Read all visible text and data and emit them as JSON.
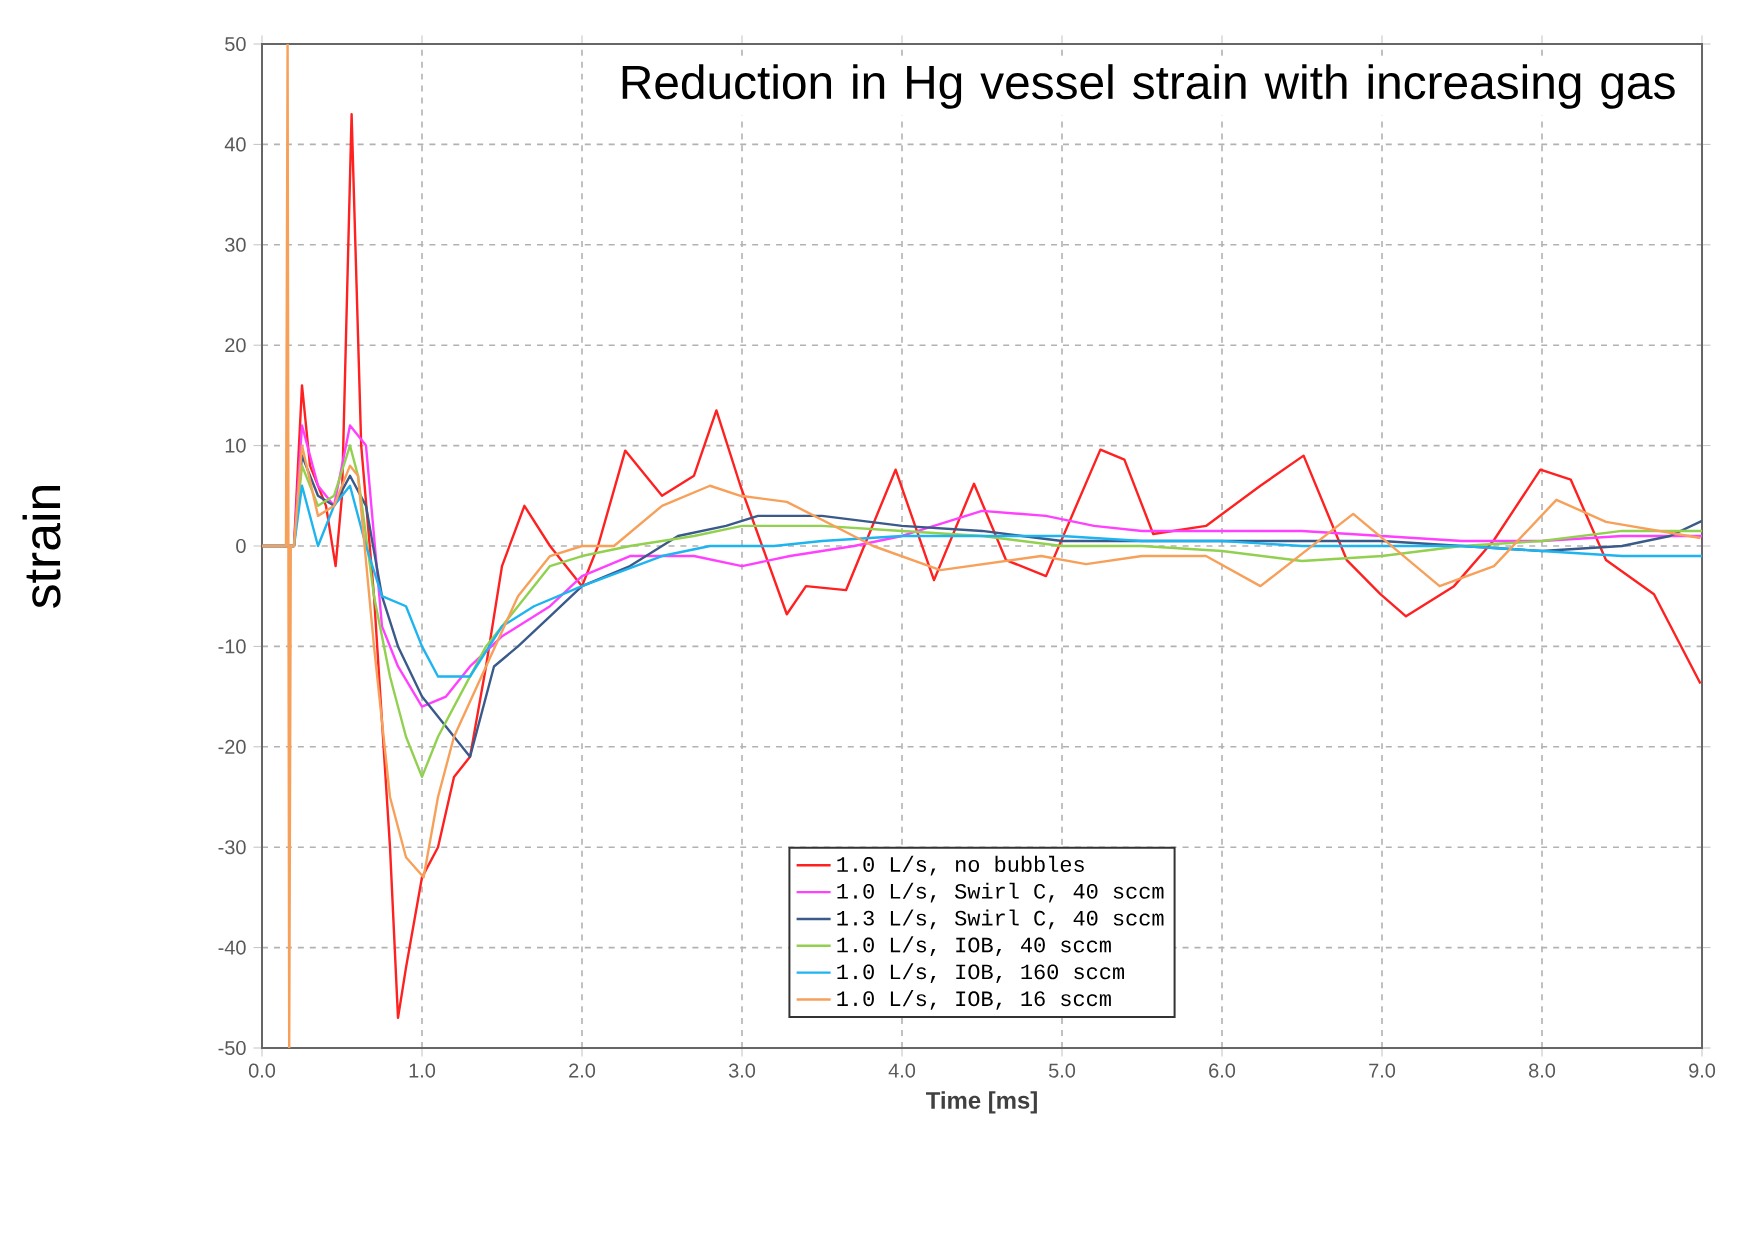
{
  "chart_data": {
    "type": "line",
    "title": "Reduction in Hg vessel strain with increasing gas",
    "xlabel": "Time [ms]",
    "ylabel": "strain",
    "xlim": [
      0,
      9
    ],
    "ylim": [
      -50,
      50
    ],
    "xticks": [
      {
        "value": 0,
        "label": "0.0"
      },
      {
        "value": 1,
        "label": "1.0"
      },
      {
        "value": 2,
        "label": "2.0"
      },
      {
        "value": 3,
        "label": "3.0"
      },
      {
        "value": 4,
        "label": "4.0"
      },
      {
        "value": 5,
        "label": "5.0"
      },
      {
        "value": 6,
        "label": "6.0"
      },
      {
        "value": 7,
        "label": "7.0"
      },
      {
        "value": 8,
        "label": "8.0"
      },
      {
        "value": 9,
        "label": "9.0"
      }
    ],
    "yticks": [
      -50,
      -40,
      -30,
      -20,
      -10,
      0,
      10,
      20,
      30,
      40,
      50
    ],
    "grid": true,
    "legend": "bottom",
    "series": [
      {
        "name": "1.0 L/s, no bubbles",
        "color": "#ff2020",
        "x": [
          0,
          0.2,
          0.25,
          0.3,
          0.35,
          0.4,
          0.46,
          0.5,
          0.56,
          0.62,
          0.7,
          0.8,
          0.85,
          0.9,
          1.0,
          1.1,
          1.2,
          1.3,
          1.4,
          1.5,
          1.64,
          1.8,
          2.0,
          2.1,
          2.27,
          2.5,
          2.7,
          2.84,
          2.99,
          3.28,
          3.4,
          3.65,
          3.96,
          4.2,
          4.45,
          4.65,
          4.9,
          5.24,
          5.39,
          5.57,
          5.9,
          6.24,
          6.51,
          6.78,
          6.99,
          7.15,
          7.45,
          7.7,
          7.99,
          8.18,
          8.4,
          8.7,
          8.99
        ],
        "values": [
          0,
          0,
          16,
          8,
          6,
          4,
          -2,
          5,
          43,
          10,
          -5,
          -30,
          -47,
          -42,
          -33,
          -30,
          -23,
          -21,
          -12,
          -2,
          4,
          0,
          -4,
          0,
          9.5,
          5,
          7,
          13.5,
          6,
          -6.8,
          -4,
          -4.4,
          7.6,
          -3.4,
          6.2,
          -1.4,
          -3,
          9.6,
          8.6,
          1.2,
          2,
          6,
          9,
          -1.4,
          -4.8,
          -7,
          -4,
          0.6,
          7.6,
          6.6,
          -1.4,
          -4.8,
          -13.7
        ]
      },
      {
        "name": "1.0 L/s, Swirl C, 40 sccm",
        "color": "#ff40ff",
        "x": [
          0,
          0.2,
          0.25,
          0.35,
          0.45,
          0.55,
          0.65,
          0.75,
          0.85,
          1.0,
          1.15,
          1.3,
          1.5,
          1.8,
          2.0,
          2.3,
          2.7,
          3.0,
          3.3,
          3.7,
          4.0,
          4.5,
          4.9,
          5.2,
          5.5,
          6.0,
          6.5,
          7.0,
          7.5,
          8.0,
          8.5,
          9.0
        ],
        "values": [
          0,
          0,
          12,
          6,
          4,
          12,
          10,
          -8,
          -12,
          -16,
          -15,
          -12,
          -9,
          -6,
          -3,
          -1,
          -1,
          -2,
          -1,
          0,
          1,
          3.5,
          3,
          2,
          1.5,
          1.5,
          1.5,
          1,
          0.5,
          0.5,
          1,
          1
        ]
      },
      {
        "name": "1.3 L/s, Swirl C, 40 sccm",
        "color": "#3a5a8a",
        "x": [
          0,
          0.2,
          0.25,
          0.35,
          0.45,
          0.55,
          0.65,
          0.75,
          0.85,
          1.0,
          1.15,
          1.3,
          1.45,
          1.6,
          1.8,
          2.0,
          2.3,
          2.6,
          2.9,
          3.1,
          3.5,
          4.0,
          4.5,
          5.0,
          5.5,
          6.0,
          6.5,
          7.0,
          7.5,
          8.0,
          8.5,
          8.8,
          9.0
        ],
        "values": [
          0,
          0,
          9,
          5,
          4,
          7,
          4,
          -5,
          -10,
          -15,
          -18,
          -21,
          -12,
          -10,
          -7,
          -4,
          -2,
          1,
          2,
          3,
          3,
          2,
          1.5,
          0.5,
          0.5,
          0.5,
          0.5,
          0.5,
          0,
          -0.5,
          0,
          1,
          2.5
        ]
      },
      {
        "name": "1.0 L/s, IOB, 40 sccm",
        "color": "#92d050",
        "x": [
          0,
          0.2,
          0.25,
          0.35,
          0.45,
          0.55,
          0.6,
          0.7,
          0.8,
          0.9,
          1.0,
          1.1,
          1.2,
          1.4,
          1.6,
          1.8,
          2.0,
          2.3,
          2.7,
          3.0,
          3.5,
          4.0,
          4.5,
          5.0,
          5.5,
          6.0,
          6.5,
          7.0,
          7.5,
          8.0,
          8.5,
          9.0
        ],
        "values": [
          0,
          0,
          8,
          4,
          5,
          10,
          7,
          -5,
          -13,
          -19,
          -23,
          -19,
          -16,
          -10,
          -6,
          -2,
          -1,
          0,
          1,
          2,
          2,
          1.5,
          1,
          0,
          0,
          -0.5,
          -1.5,
          -1,
          0,
          0.5,
          1.5,
          1.5
        ]
      },
      {
        "name": "1.0 L/s, IOB, 160 sccm",
        "color": "#1eb4f0",
        "x": [
          0,
          0.2,
          0.25,
          0.35,
          0.45,
          0.55,
          0.65,
          0.75,
          0.9,
          1.0,
          1.1,
          1.3,
          1.5,
          1.7,
          2.0,
          2.5,
          2.8,
          3.2,
          3.5,
          4.0,
          4.5,
          5.0,
          5.5,
          6.0,
          6.5,
          7.0,
          7.5,
          8.0,
          8.5,
          9.0
        ],
        "values": [
          0,
          0,
          6,
          0,
          4,
          6,
          0,
          -5,
          -6,
          -10,
          -13,
          -13,
          -8,
          -6,
          -4,
          -1,
          0,
          0,
          0.5,
          1,
          1,
          1,
          0.5,
          0.5,
          0,
          0,
          0,
          -0.5,
          -1,
          -1
        ]
      },
      {
        "name": "1.0 L/s, IOB, 16 sccm",
        "color": "#f7a05a",
        "x": [
          0,
          0.15,
          0.16,
          0.17,
          0.18,
          0.2,
          0.25,
          0.35,
          0.45,
          0.55,
          0.6,
          0.7,
          0.8,
          0.9,
          1.01,
          1.1,
          1.2,
          1.4,
          1.6,
          1.8,
          2.0,
          2.2,
          2.5,
          2.8,
          2.99,
          3.28,
          3.82,
          4.24,
          4.87,
          5.15,
          5.5,
          5.9,
          6.24,
          6.82,
          7.36,
          7.7,
          8.09,
          8.4,
          8.99
        ],
        "values": [
          0,
          0,
          50,
          -50,
          0,
          0,
          10,
          3,
          4,
          8,
          7,
          -10,
          -25,
          -31,
          -33,
          -25,
          -19,
          -12,
          -5,
          -1,
          0,
          0,
          4,
          6,
          5,
          4.4,
          0,
          -2.4,
          -1,
          -1.8,
          -1,
          -1,
          -4,
          3.2,
          -4,
          -2,
          4.6,
          2.4,
          0.8
        ]
      }
    ]
  }
}
